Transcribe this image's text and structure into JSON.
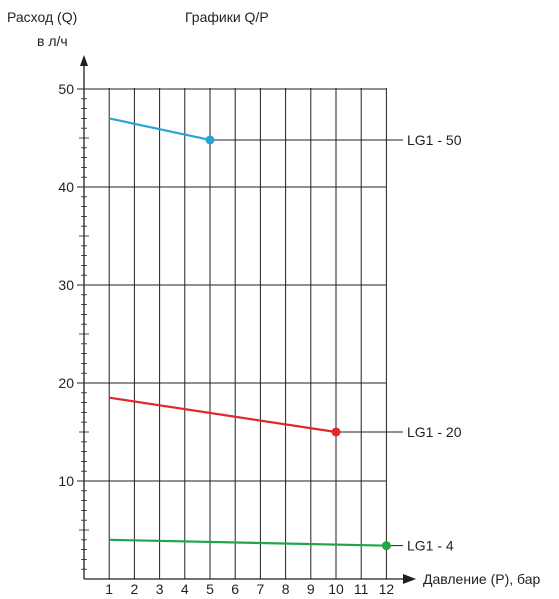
{
  "chart_data": {
    "type": "line",
    "title": "Графики Q/P",
    "ylabel": "Расход (Q)",
    "ylabel_unit": "в л/ч",
    "xlabel": "Давление (P), бар",
    "x_ticks": [
      "1",
      "2",
      "3",
      "4",
      "5",
      "6",
      "7",
      "8",
      "9",
      "10",
      "11",
      "12"
    ],
    "y_ticks": [
      "10",
      "20",
      "30",
      "40",
      "50"
    ],
    "xlim": [
      0,
      12
    ],
    "ylim": [
      0,
      50
    ],
    "grid": true,
    "series": [
      {
        "name": "LG1 - 50",
        "color": "#29a3d9",
        "x": [
          1,
          5
        ],
        "y": [
          47,
          44.8
        ]
      },
      {
        "name": "LG1 - 20",
        "color": "#e0282e",
        "x": [
          1,
          10
        ],
        "y": [
          18.5,
          15
        ]
      },
      {
        "name": "LG1 - 4",
        "color": "#1ea64b",
        "x": [
          1,
          12
        ],
        "y": [
          4,
          3.4
        ]
      }
    ]
  }
}
